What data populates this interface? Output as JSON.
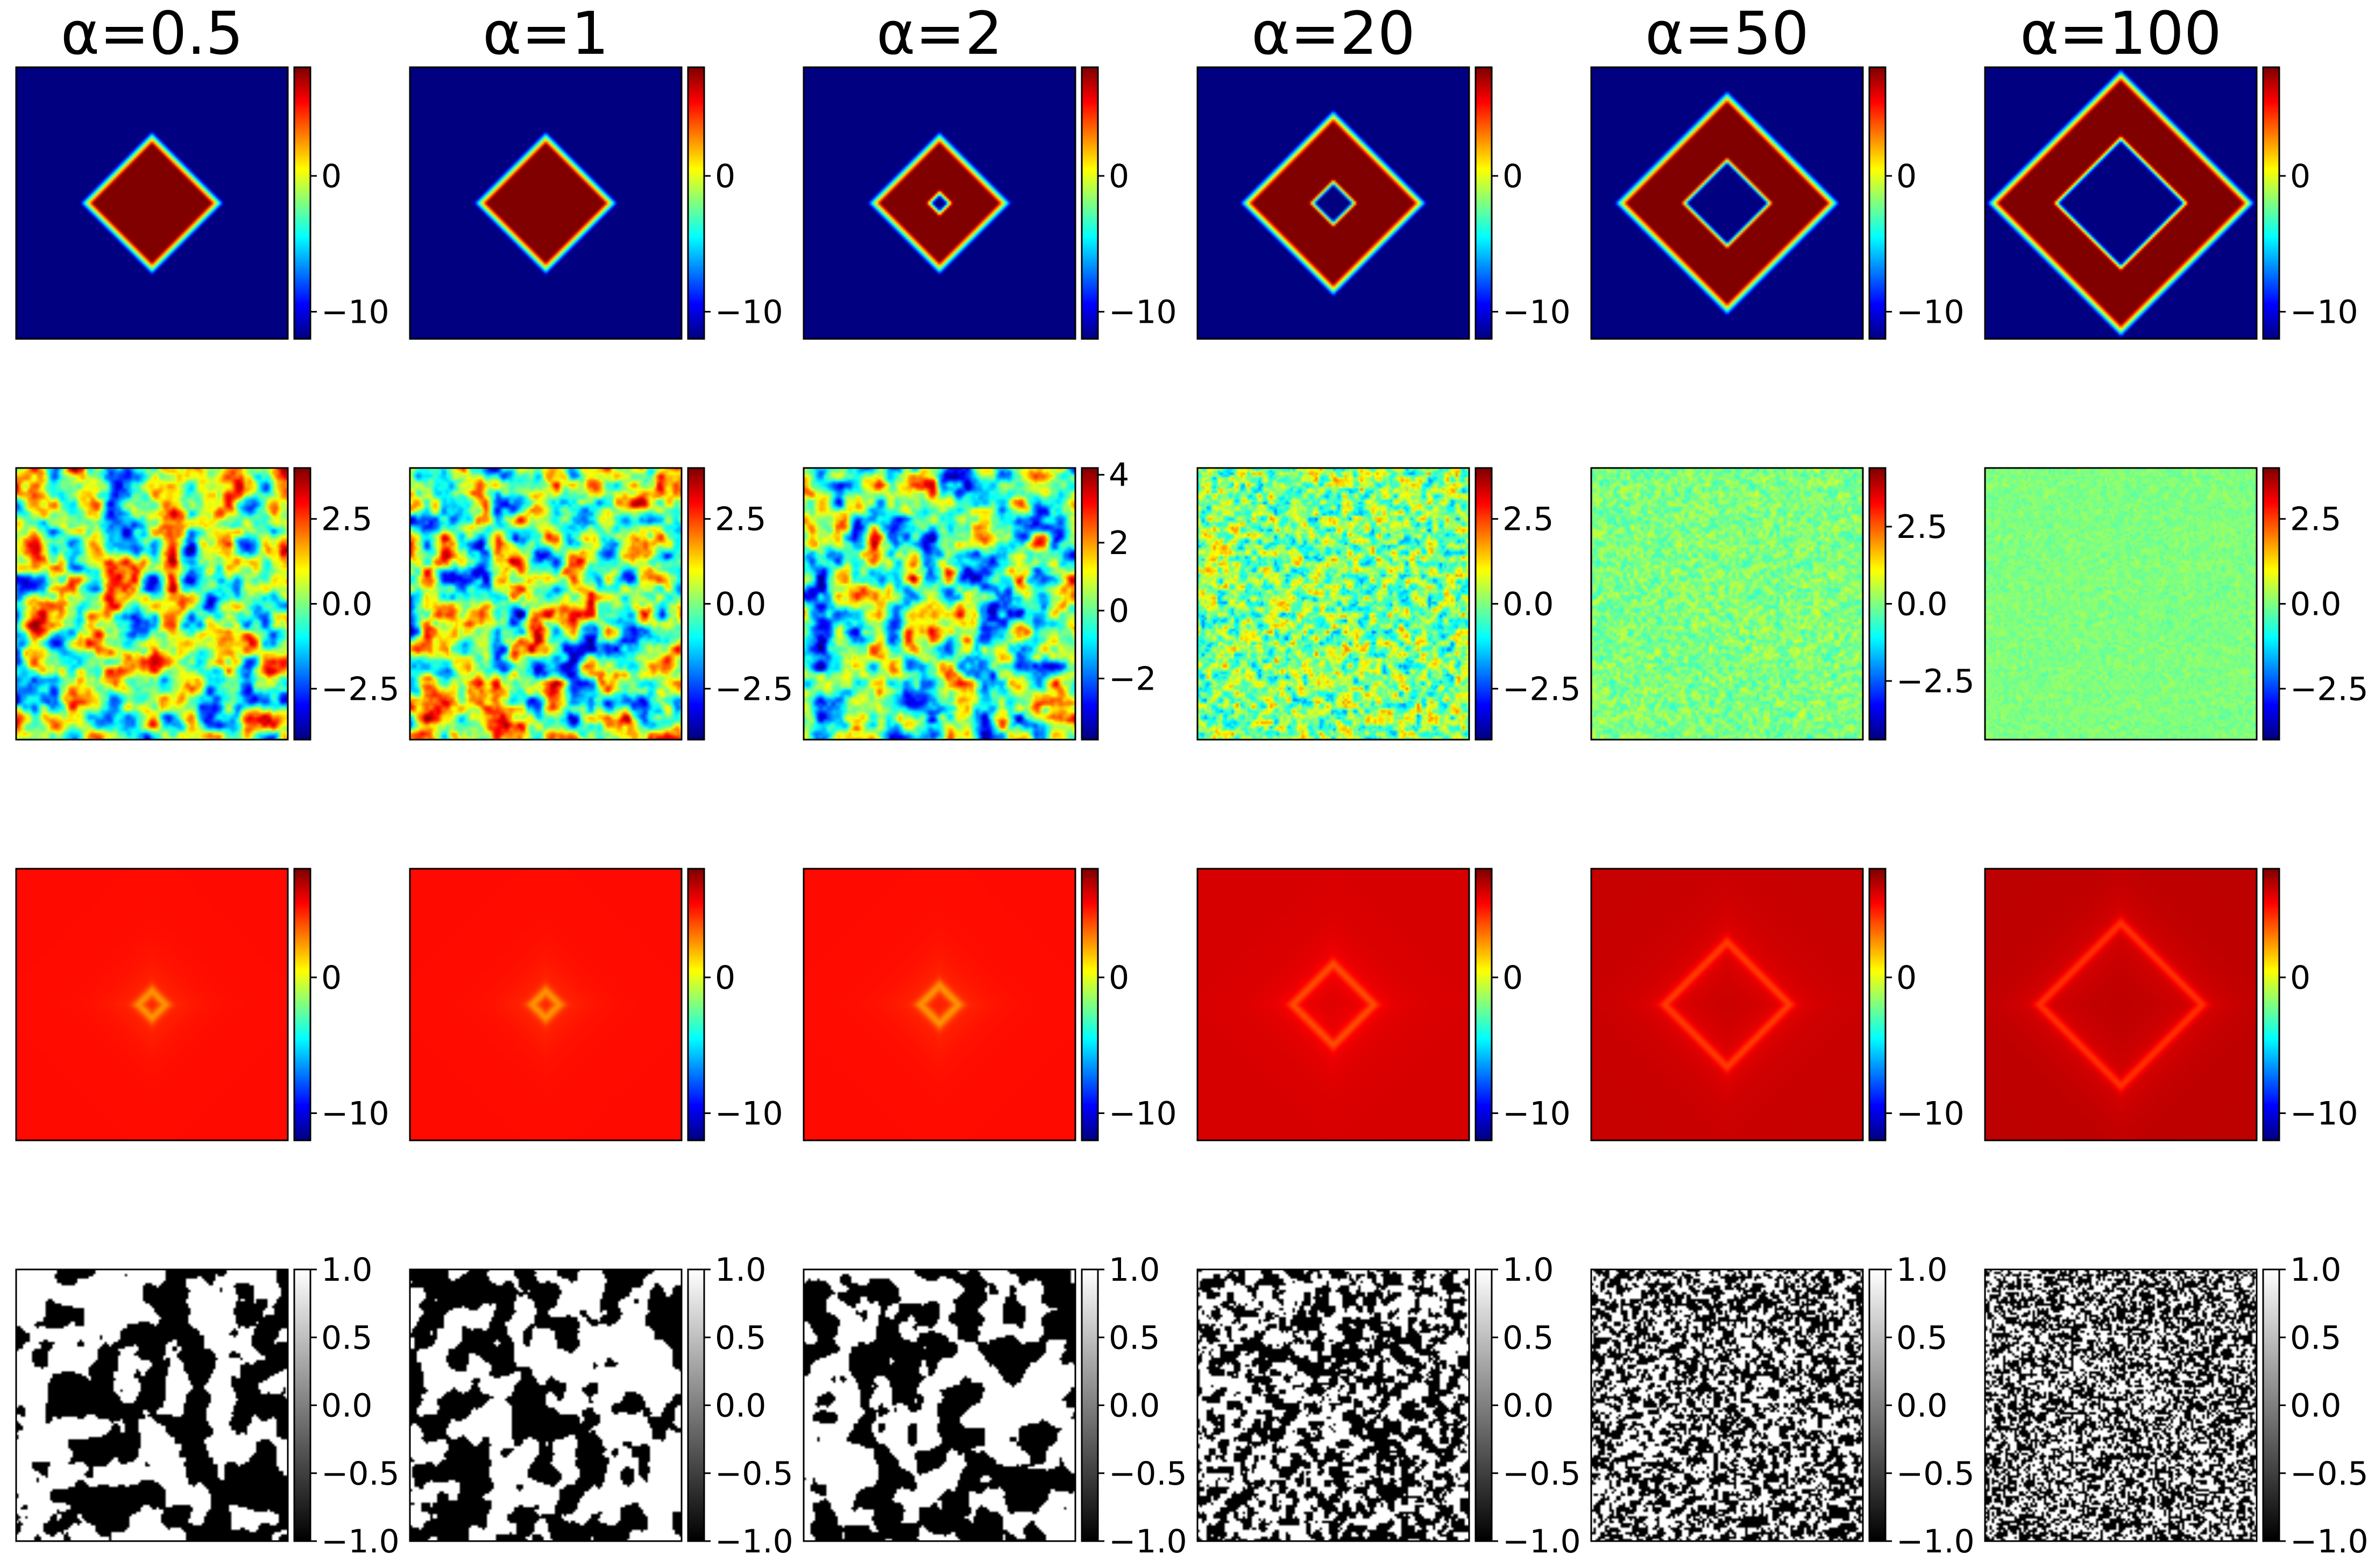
{
  "chart_data": {
    "type": "heatmap",
    "layout": "4 rows x 6 columns of image panels, each with its own colorbar",
    "columns": [
      "α=0.5",
      "α=1",
      "α=2",
      "α=20",
      "α=50",
      "α=100"
    ],
    "alpha_values": [
      0.5,
      1,
      2,
      20,
      50,
      100
    ],
    "rows": [
      {
        "colormap": "jet",
        "pattern": "diamond",
        "background_value": -12,
        "peak_value": 8,
        "diamond_half_width": [
          0.27,
          0.27,
          0.27,
          0.35,
          0.42,
          0.5
        ],
        "hole_half_width": [
          0.0,
          0.0,
          0.02,
          0.06,
          0.14,
          0.22
        ],
        "colorbars": [
          {
            "range": [
              -12,
              8
            ],
            "ticks": [
              "0",
              "−10"
            ],
            "tick_values": [
              0,
              -10
            ]
          },
          {
            "range": [
              -12,
              8
            ],
            "ticks": [
              "0",
              "−10"
            ],
            "tick_values": [
              0,
              -10
            ]
          },
          {
            "range": [
              -12,
              8
            ],
            "ticks": [
              "0",
              "−10"
            ],
            "tick_values": [
              0,
              -10
            ]
          },
          {
            "range": [
              -12,
              8
            ],
            "ticks": [
              "0",
              "−10"
            ],
            "tick_values": [
              0,
              -10
            ]
          },
          {
            "range": [
              -12,
              8
            ],
            "ticks": [
              "0",
              "−10"
            ],
            "tick_values": [
              0,
              -10
            ]
          },
          {
            "range": [
              -12,
              8
            ],
            "ticks": [
              "0",
              "−10"
            ],
            "tick_values": [
              0,
              -10
            ]
          }
        ]
      },
      {
        "colormap": "jet",
        "pattern": "noise",
        "feature_cells": [
          14,
          15,
          15,
          48,
          80,
          110
        ],
        "amplitude": [
          1.0,
          1.0,
          1.0,
          0.55,
          0.25,
          0.12
        ],
        "colorbars": [
          {
            "range": [
              -4,
              4
            ],
            "ticks": [
              "2.5",
              "0.0",
              "−2.5"
            ],
            "tick_values": [
              2.5,
              0.0,
              -2.5
            ]
          },
          {
            "range": [
              -4,
              4
            ],
            "ticks": [
              "2.5",
              "0.0",
              "−2.5"
            ],
            "tick_values": [
              2.5,
              0.0,
              -2.5
            ]
          },
          {
            "range": [
              -3.8,
              4.2
            ],
            "ticks": [
              "4",
              "2",
              "0",
              "−2"
            ],
            "tick_values": [
              4,
              2,
              0,
              -2
            ]
          },
          {
            "range": [
              -4,
              4
            ],
            "ticks": [
              "2.5",
              "0.0",
              "−2.5"
            ],
            "tick_values": [
              2.5,
              0.0,
              -2.5
            ]
          },
          {
            "range": [
              -4.4,
              4.4
            ],
            "ticks": [
              "2.5",
              "0.0",
              "−2.5"
            ],
            "tick_values": [
              2.5,
              0.0,
              -2.5
            ]
          },
          {
            "range": [
              -4,
              4
            ],
            "ticks": [
              "2.5",
              "0.0",
              "−2.5"
            ],
            "tick_values": [
              2.5,
              0.0,
              -2.5
            ]
          }
        ]
      },
      {
        "colormap": "jet",
        "pattern": "shadow",
        "background_value": [
          5.3,
          5.3,
          5.3,
          6.3,
          6.6,
          6.8
        ],
        "shadow_strength": [
          2.0,
          2.0,
          2.0,
          1.6,
          1.6,
          1.6
        ],
        "shadow_radius": [
          0.05,
          0.05,
          0.07,
          0.15,
          0.23,
          0.3
        ],
        "colorbars": [
          {
            "range": [
              -12,
              8
            ],
            "ticks": [
              "0",
              "−10"
            ],
            "tick_values": [
              0,
              -10
            ]
          },
          {
            "range": [
              -12,
              8
            ],
            "ticks": [
              "0",
              "−10"
            ],
            "tick_values": [
              0,
              -10
            ]
          },
          {
            "range": [
              -12,
              8
            ],
            "ticks": [
              "0",
              "−10"
            ],
            "tick_values": [
              0,
              -10
            ]
          },
          {
            "range": [
              -12,
              8
            ],
            "ticks": [
              "0",
              "−10"
            ],
            "tick_values": [
              0,
              -10
            ]
          },
          {
            "range": [
              -12,
              8
            ],
            "ticks": [
              "0",
              "−10"
            ],
            "tick_values": [
              0,
              -10
            ]
          },
          {
            "range": [
              -12,
              8
            ],
            "ticks": [
              "0",
              "−10"
            ],
            "tick_values": [
              0,
              -10
            ]
          }
        ]
      },
      {
        "colormap": "gray",
        "pattern": "binary",
        "feature_cells": [
          12,
          12,
          13,
          42,
          70,
          100
        ],
        "colorbars": [
          {
            "range": [
              -1.0,
              1.0
            ],
            "ticks": [
              "1.0",
              "0.5",
              "0.0",
              "−0.5",
              "−1.0"
            ],
            "tick_values": [
              1.0,
              0.5,
              0.0,
              -0.5,
              -1.0
            ]
          },
          {
            "range": [
              -1.0,
              1.0
            ],
            "ticks": [
              "1.0",
              "0.5",
              "0.0",
              "−0.5",
              "−1.0"
            ],
            "tick_values": [
              1.0,
              0.5,
              0.0,
              -0.5,
              -1.0
            ]
          },
          {
            "range": [
              -1.0,
              1.0
            ],
            "ticks": [
              "1.0",
              "0.5",
              "0.0",
              "−0.5",
              "−1.0"
            ],
            "tick_values": [
              1.0,
              0.5,
              0.0,
              -0.5,
              -1.0
            ]
          },
          {
            "range": [
              -1.0,
              1.0
            ],
            "ticks": [
              "1.0",
              "0.5",
              "0.0",
              "−0.5",
              "−1.0"
            ],
            "tick_values": [
              1.0,
              0.5,
              0.0,
              -0.5,
              -1.0
            ]
          },
          {
            "range": [
              -1.0,
              1.0
            ],
            "ticks": [
              "1.0",
              "0.5",
              "0.0",
              "−0.5",
              "−1.0"
            ],
            "tick_values": [
              1.0,
              0.5,
              0.0,
              -0.5,
              -1.0
            ]
          },
          {
            "range": [
              -1.0,
              1.0
            ],
            "ticks": [
              "1.0",
              "0.5",
              "0.0",
              "−0.5",
              "−1.0"
            ],
            "tick_values": [
              1.0,
              0.5,
              0.0,
              -0.5,
              -1.0
            ]
          }
        ]
      }
    ]
  }
}
